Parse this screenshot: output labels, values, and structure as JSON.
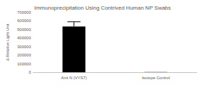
{
  "chart_data": {
    "type": "bar",
    "title": "Immunoprecipitation Using Contrived Human NP Swabs",
    "y_label": "Δ Relative Light Unit",
    "categories": [
      "Anti N (VYS7)",
      "Isotope Control"
    ],
    "values": [
      535000,
      2000
    ],
    "errors": [
      55000,
      0
    ],
    "color": "#000000",
    "ylim": [
      0,
      700000
    ],
    "yticks": [
      0,
      100000,
      200000,
      300000,
      400000,
      500000,
      600000,
      700000
    ],
    "grid": false
  }
}
